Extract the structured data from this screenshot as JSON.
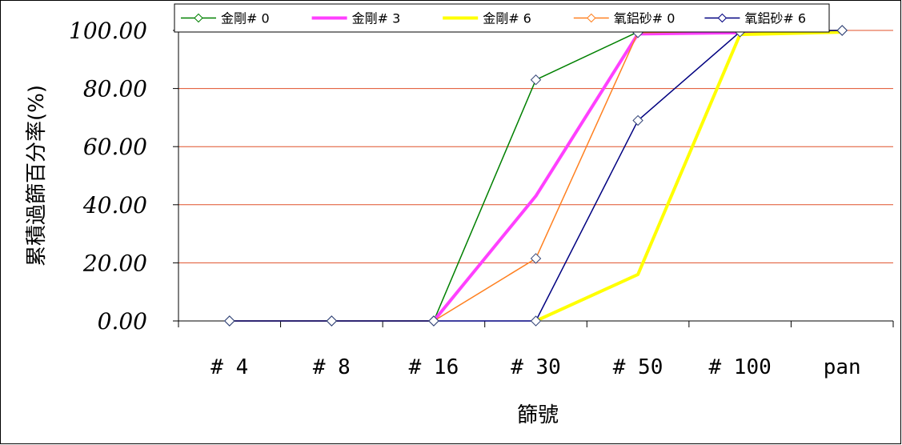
{
  "chart_data": {
    "type": "line",
    "title": "",
    "xlabel": "篩號",
    "ylabel": "累積過篩百分率(%)",
    "categories": [
      "# 4",
      "# 8",
      "# 16",
      "# 30",
      "# 50",
      "# 100",
      "pan"
    ],
    "ylim": [
      0,
      100
    ],
    "yticks": [
      "0.00",
      "20.00",
      "40.00",
      "60.00",
      "80.00",
      "100.00"
    ],
    "grid": true,
    "legend_position": "top",
    "series": [
      {
        "name": "金剛# 0",
        "color": "#008000",
        "width": 1.5,
        "marker": "diamond",
        "values": [
          0,
          0,
          0,
          83,
          99.5,
          99.8,
          100
        ]
      },
      {
        "name": "金剛# 3",
        "color": "#ff40ff",
        "width": 4,
        "marker": "none",
        "values": [
          null,
          null,
          0,
          43,
          98.8,
          99.2,
          99.6
        ]
      },
      {
        "name": "金剛# 6",
        "color": "#ffff00",
        "width": 4,
        "marker": "none",
        "values": [
          null,
          null,
          null,
          0,
          16,
          98.6,
          99.4
        ]
      },
      {
        "name": "氧鋁砂# 0",
        "color": "#ff8020",
        "width": 1.5,
        "marker": "diamond",
        "values": [
          0,
          0,
          0,
          21.5,
          99.2,
          99.8,
          100
        ]
      },
      {
        "name": "氧鋁砂# 6",
        "color": "#000080",
        "width": 1.5,
        "marker": "diamond",
        "values": [
          0,
          0,
          0,
          0,
          69,
          99.5,
          100
        ]
      }
    ]
  }
}
